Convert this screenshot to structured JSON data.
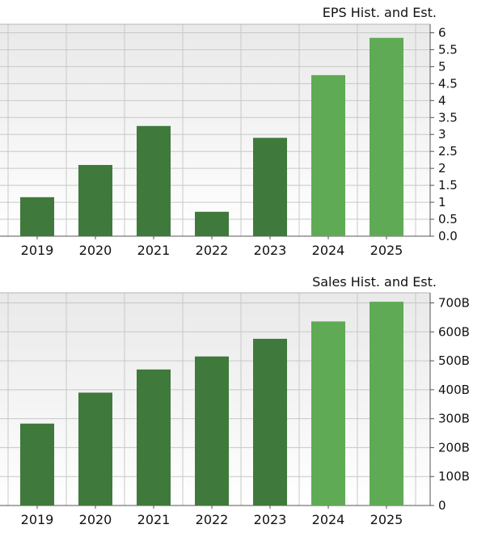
{
  "colors": {
    "historical_bar": "#3f7a3c",
    "estimate_bar": "#5fab55",
    "grid": "#c8c8c8",
    "axis": "#555555",
    "text": "#111111"
  },
  "chart_data": [
    {
      "type": "bar",
      "title": "EPS Hist. and Est.",
      "categories": [
        "2019",
        "2020",
        "2021",
        "2022",
        "2023",
        "2024",
        "2025"
      ],
      "values": [
        1.15,
        2.1,
        3.25,
        0.72,
        2.9,
        4.75,
        5.85
      ],
      "estimate": [
        false,
        false,
        false,
        false,
        false,
        true,
        true
      ],
      "ylim": [
        0,
        6.25
      ],
      "yticks": [
        0,
        0.5,
        1,
        1.5,
        2,
        2.5,
        3,
        3.5,
        4,
        4.5,
        5,
        5.5,
        6
      ],
      "ytick_labels": [
        "0.0",
        "0.5",
        "1",
        "1.5",
        "2",
        "2.5",
        "3",
        "3.5",
        "4",
        "4.5",
        "5",
        "5.5",
        "6"
      ],
      "y_axis_side": "right",
      "grid": true
    },
    {
      "type": "bar",
      "title": "Sales Hist. and Est.",
      "categories": [
        "2019",
        "2020",
        "2021",
        "2022",
        "2023",
        "2024",
        "2025"
      ],
      "values": [
        283,
        390,
        470,
        515,
        576,
        636,
        704
      ],
      "estimate": [
        false,
        false,
        false,
        false,
        false,
        true,
        true
      ],
      "ylim": [
        0,
        735
      ],
      "yticks": [
        0,
        100,
        200,
        300,
        400,
        500,
        600,
        700
      ],
      "ytick_labels": [
        "0",
        "100B",
        "200B",
        "300B",
        "400B",
        "500B",
        "600B",
        "700B"
      ],
      "y_axis_side": "right",
      "grid": true
    }
  ]
}
